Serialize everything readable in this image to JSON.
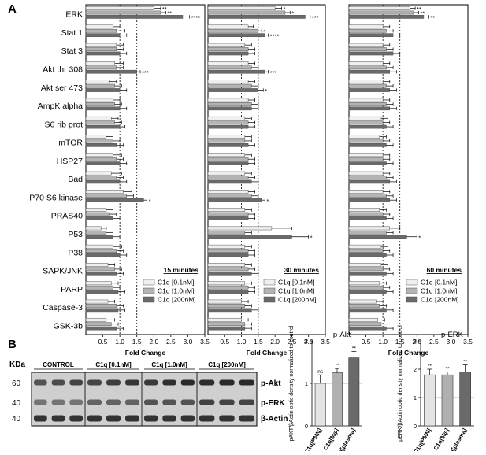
{
  "panel_labels": {
    "a": "A",
    "b": "B"
  },
  "chart_data": [
    {
      "type": "bar",
      "orientation": "horizontal",
      "panel": "A",
      "title": "15 minutes",
      "xlabel": "Fold Change",
      "xlim": [
        0,
        3.5
      ],
      "xticks": [
        "0.5",
        "1.0",
        "1.5",
        "2.0",
        "2.5",
        "3.0",
        "3.5"
      ],
      "reference_lines": [
        1.0,
        1.5
      ],
      "categories": [
        "ERK",
        "Stat 1",
        "Stat 3",
        "Akt thr 308",
        "Akt ser 473",
        "AmpK alpha",
        "S6 rib prot",
        "mTOR",
        "HSP27",
        "Bad",
        "P70 S6 kinase",
        "PRAS40",
        "P53",
        "P38",
        "SAPK/JNK",
        "PARP",
        "Caspase-3",
        "GSK-3b"
      ],
      "series": [
        {
          "name": "C1q [0.1nM]",
          "values": [
            2.0,
            0.8,
            0.9,
            0.85,
            0.7,
            0.8,
            0.75,
            0.6,
            0.8,
            0.75,
            1.1,
            0.6,
            0.45,
            0.8,
            0.65,
            0.75,
            0.65,
            0.6
          ],
          "errors": [
            0.2,
            0.2,
            0.2,
            0.25,
            0.2,
            0.2,
            0.2,
            0.2,
            0.25,
            0.3,
            0.25,
            0.2,
            0.15,
            0.25,
            0.2,
            0.2,
            0.2,
            0.25
          ],
          "sig": [
            "**",
            "",
            "",
            "",
            "",
            "",
            "",
            "",
            "",
            "",
            "",
            "",
            "",
            "",
            "",
            "",
            "",
            ""
          ]
        },
        {
          "name": "C1q [1.0nM]",
          "values": [
            2.2,
            0.9,
            0.9,
            0.9,
            0.85,
            0.85,
            0.85,
            0.8,
            0.9,
            0.9,
            1.2,
            0.7,
            0.6,
            0.9,
            0.85,
            0.8,
            0.9,
            0.75
          ],
          "errors": [
            0.15,
            0.25,
            0.2,
            0.2,
            0.2,
            0.2,
            0.2,
            0.2,
            0.2,
            0.2,
            0.2,
            0.2,
            0.2,
            0.2,
            0.2,
            0.2,
            0.2,
            0.2
          ],
          "sig": [
            "**",
            "",
            "",
            "",
            "",
            "",
            "",
            "",
            "",
            "",
            "",
            "",
            "",
            "",
            "",
            "",
            "",
            ""
          ]
        },
        {
          "name": "C1q [200nM]",
          "values": [
            2.85,
            1.0,
            1.0,
            1.5,
            1.0,
            1.0,
            1.0,
            0.9,
            1.0,
            1.0,
            1.7,
            0.8,
            0.8,
            1.0,
            0.9,
            0.95,
            0.95,
            0.9
          ],
          "errors": [
            0.2,
            0.2,
            0.2,
            0.1,
            0.2,
            0.2,
            0.15,
            0.2,
            0.2,
            0.2,
            0.1,
            0.2,
            0.2,
            0.2,
            0.2,
            0.2,
            0.2,
            0.2
          ],
          "sig": [
            "****",
            "",
            "",
            "***",
            "",
            "",
            "",
            "",
            "",
            "",
            "*",
            "",
            "",
            "",
            "",
            "",
            "",
            ""
          ]
        }
      ]
    },
    {
      "type": "bar",
      "orientation": "horizontal",
      "panel": "A",
      "title": "30 minutes",
      "xlabel": "Fold Change",
      "xlim": [
        0,
        3.5
      ],
      "xticks": [
        "0.5",
        "1.0",
        "1.5",
        "2.0",
        "2.5",
        "3.0",
        "3.5"
      ],
      "reference_lines": [
        1.0,
        1.5
      ],
      "categories": [
        "ERK",
        "Stat 1",
        "Stat 3",
        "Akt thr 308",
        "Akt ser 473",
        "AmpK alpha",
        "S6 rib prot",
        "mTOR",
        "HSP27",
        "Bad",
        "P70 S6 kinase",
        "PRAS40",
        "P53",
        "P38",
        "SAPK/JNK",
        "PARP",
        "Caspase-3",
        "GSK-3b"
      ],
      "series": [
        {
          "name": "C1q [0.1nM]",
          "values": [
            2.0,
            1.2,
            1.1,
            1.2,
            1.2,
            1.2,
            1.1,
            1.1,
            1.1,
            1.1,
            1.2,
            1.1,
            1.9,
            1.1,
            1.1,
            1.1,
            1.0,
            1.0
          ],
          "errors": [
            0.2,
            0.15,
            0.2,
            0.2,
            0.2,
            0.2,
            0.2,
            0.2,
            0.2,
            0.2,
            0.2,
            0.2,
            0.6,
            0.2,
            0.2,
            0.2,
            0.2,
            0.2
          ],
          "sig": [
            "*",
            "",
            "",
            "",
            "",
            "",
            "",
            "",
            "",
            "",
            "",
            "",
            "",
            "",
            "",
            "",
            "",
            ""
          ]
        },
        {
          "name": "C1q [1.0nM]",
          "values": [
            2.3,
            1.5,
            1.2,
            1.3,
            1.3,
            1.3,
            1.2,
            1.1,
            1.2,
            1.2,
            1.3,
            1.2,
            1.1,
            1.2,
            1.2,
            1.2,
            1.1,
            1.1
          ],
          "errors": [
            0.15,
            0.1,
            0.2,
            0.2,
            0.2,
            0.2,
            0.2,
            0.2,
            0.2,
            0.2,
            0.2,
            0.2,
            0.2,
            0.2,
            0.2,
            0.2,
            0.2,
            0.2
          ],
          "sig": [
            "*",
            "*",
            "",
            "",
            "",
            "",
            "",
            "",
            "",
            "",
            "",
            "",
            "",
            "",
            "",
            "",
            "",
            ""
          ]
        },
        {
          "name": "C1q [200nM]",
          "values": [
            2.9,
            1.7,
            1.2,
            1.7,
            1.5,
            1.3,
            1.2,
            1.2,
            1.2,
            1.3,
            1.6,
            1.2,
            2.5,
            1.2,
            1.3,
            1.2,
            1.3,
            1.1
          ],
          "errors": [
            0.15,
            0.1,
            0.2,
            0.1,
            0.15,
            0.2,
            0.2,
            0.2,
            0.2,
            0.2,
            0.1,
            0.2,
            0.5,
            0.2,
            0.2,
            0.2,
            0.2,
            0.2
          ],
          "sig": [
            "***",
            "****",
            "",
            "***",
            "*",
            "",
            "",
            "",
            "",
            "",
            "*",
            "",
            "*",
            "",
            "",
            "",
            "",
            ""
          ]
        }
      ]
    },
    {
      "type": "bar",
      "orientation": "horizontal",
      "panel": "A",
      "title": "60 minutes",
      "xlabel": "Fold Change",
      "xlim": [
        0,
        3.5
      ],
      "xticks": [
        "0.5",
        "1.0",
        "1.5",
        "2.0",
        "2.5",
        "3.0",
        "3.5"
      ],
      "reference_lines": [
        1.0,
        1.5
      ],
      "categories": [
        "ERK",
        "Stat 1",
        "Stat 3",
        "Akt thr 308",
        "Akt ser 473",
        "AmpK alpha",
        "S6 rib prot",
        "mTOR",
        "HSP27",
        "Bad",
        "P70 S6 kinase",
        "PRAS40",
        "P53",
        "P38",
        "SAPK/JNK",
        "PARP",
        "Caspase-3",
        "GSK-3b"
      ],
      "series": [
        {
          "name": "C1q [0.1nM]",
          "values": [
            1.8,
            1.0,
            1.0,
            1.0,
            1.0,
            1.0,
            0.95,
            0.9,
            1.0,
            1.0,
            1.0,
            0.9,
            1.2,
            0.95,
            0.95,
            0.9,
            0.8,
            0.85
          ],
          "errors": [
            0.15,
            0.2,
            0.2,
            0.2,
            0.2,
            0.2,
            0.2,
            0.2,
            0.2,
            0.2,
            0.2,
            0.2,
            0.3,
            0.2,
            0.2,
            0.2,
            0.2,
            0.2
          ],
          "sig": [
            "**",
            "",
            "",
            "",
            "",
            "",
            "",
            "",
            "",
            "",
            "",
            "",
            "",
            "",
            "",
            "",
            "",
            ""
          ]
        },
        {
          "name": "C1q [1.0nM]",
          "values": [
            1.9,
            1.1,
            1.1,
            1.1,
            1.1,
            1.1,
            1.0,
            1.0,
            1.0,
            1.1,
            1.1,
            1.0,
            1.1,
            1.0,
            1.0,
            1.0,
            0.9,
            0.95
          ],
          "errors": [
            0.15,
            0.2,
            0.2,
            0.2,
            0.2,
            0.2,
            0.2,
            0.2,
            0.2,
            0.2,
            0.2,
            0.2,
            0.2,
            0.2,
            0.2,
            0.2,
            0.2,
            0.2
          ],
          "sig": [
            "**",
            "",
            "",
            "",
            "",
            "",
            "",
            "",
            "",
            "",
            "",
            "",
            "",
            "",
            "",
            "",
            "",
            ""
          ]
        },
        {
          "name": "C1q [200nM]",
          "values": [
            2.2,
            1.3,
            1.3,
            1.2,
            1.2,
            1.2,
            1.1,
            1.1,
            1.1,
            1.2,
            1.2,
            1.1,
            1.7,
            1.1,
            1.1,
            1.1,
            1.1,
            1.1
          ],
          "errors": [
            0.15,
            0.2,
            0.2,
            0.2,
            0.2,
            0.2,
            0.2,
            0.2,
            0.2,
            0.2,
            0.2,
            0.2,
            0.3,
            0.2,
            0.2,
            0.2,
            0.2,
            0.2
          ],
          "sig": [
            "**",
            "",
            "",
            "",
            "",
            "",
            "",
            "",
            "",
            "",
            "",
            "",
            "*",
            "",
            "",
            "",
            "",
            ""
          ]
        }
      ]
    },
    {
      "type": "bar",
      "panel": "B",
      "title": "p-Akt",
      "ylabel": "pAKT/βActin optic density normalized to control",
      "ylim": [
        0,
        2
      ],
      "yticks": [
        "0",
        "1",
        "2"
      ],
      "reference_line": 1,
      "categories": [
        "C1q[PMN]",
        "C1q[Mφ]",
        "C1q[plasma]"
      ],
      "values": [
        1.0,
        1.25,
        1.6
      ],
      "errors": [
        0.2,
        0.1,
        0.15
      ],
      "sig": [
        "ns",
        "**",
        "**"
      ]
    },
    {
      "type": "bar",
      "panel": "B",
      "title": "p-ERK",
      "ylabel": "pERK/βActin optic density normalized to control",
      "ylim": [
        0,
        3
      ],
      "yticks": [
        "0",
        "1",
        "2",
        "3"
      ],
      "reference_line": 1,
      "categories": [
        "C1q[PMN]",
        "C1q[Mφ]",
        "C1q[plasma]"
      ],
      "values": [
        1.8,
        1.8,
        1.9
      ],
      "errors": [
        0.2,
        0.1,
        0.25
      ],
      "sig": [
        "**",
        "**",
        "**"
      ]
    }
  ],
  "western_blot": {
    "kda_label": "KDa",
    "kda_values": [
      "60",
      "40",
      "40"
    ],
    "groups": [
      "CONTROL",
      "C1q [0.1nM]",
      "C1q [1.0nM]",
      "C1q [200nM]"
    ],
    "bands": [
      "p-Akt",
      "p-ERK",
      "β-Actin"
    ]
  },
  "colors": {
    "bar_low": "#efefef",
    "bar_mid": "#b4b4b4",
    "bar_high": "#6a6a6a",
    "b_bar1": "#e4e4e4",
    "b_bar2": "#b0b0b0",
    "b_bar3": "#6a6a6a",
    "blot_bg": "#cfcfcf",
    "band": "#2a2a2a"
  }
}
